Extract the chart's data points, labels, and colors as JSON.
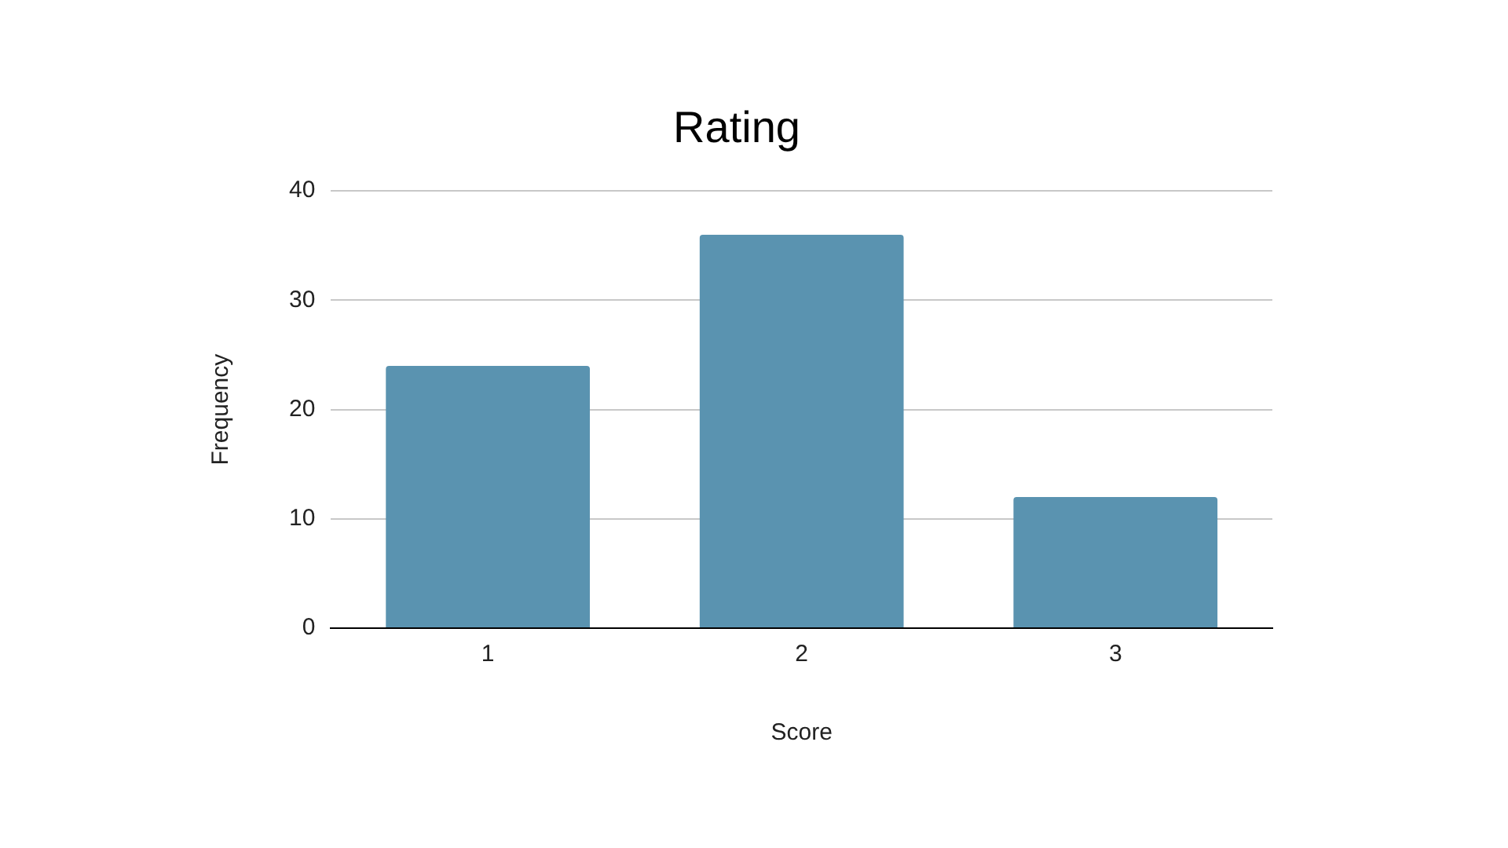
{
  "chart_data": {
    "type": "bar",
    "title": "Rating",
    "xlabel": "Score",
    "ylabel": "Frequency",
    "categories": [
      "1",
      "2",
      "3"
    ],
    "values": [
      24,
      36,
      12
    ],
    "color": "#5a93b0",
    "ylim": [
      0,
      40
    ],
    "yticks": [
      0,
      10,
      20,
      30,
      40
    ],
    "grid": "y",
    "legend": false
  }
}
